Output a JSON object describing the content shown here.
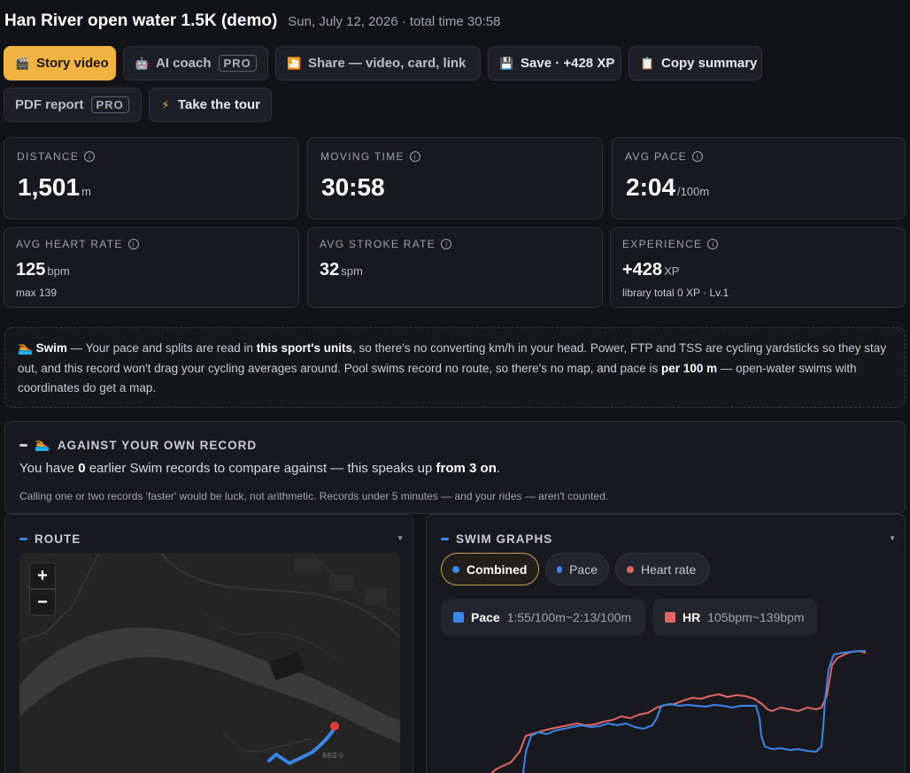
{
  "header": {
    "title": "Han River open water 1.5K (demo)",
    "subtitle": "Sun, July 12, 2026 · total time 30:58"
  },
  "toolbar": {
    "story_video": "Story video",
    "ai_coach": "AI coach",
    "share": "Share — video, card, link",
    "save": "Save · +428 XP",
    "copy_summary": "Copy summary",
    "pdf_report": "PDF report",
    "take_tour": "Take the tour",
    "pro_badge": "PRO"
  },
  "stats": {
    "distance": {
      "label": "DISTANCE",
      "value": "1,501",
      "unit": "m"
    },
    "moving_time": {
      "label": "MOVING TIME",
      "value": "30:58"
    },
    "avg_pace": {
      "label": "AVG PACE",
      "value": "2:04",
      "unit": "/100m"
    },
    "avg_hr": {
      "label": "AVG HEART RATE",
      "value": "125",
      "unit": "bpm",
      "sub": "max 139"
    },
    "avg_stroke": {
      "label": "AVG STROKE RATE",
      "value": "32",
      "unit": "spm"
    },
    "experience": {
      "label": "EXPERIENCE",
      "value": "+428",
      "unit": "XP",
      "sub": "library total 0 XP · Lv.1"
    }
  },
  "note": {
    "sport": "Swim",
    "t1": " — Your pace and splits are read in ",
    "b1": "this sport's units",
    "t2": ", so there's no converting km/h in your head. Power, FTP and TSS are cycling yardsticks so they stay out, and this record won't drag your cycling averages around. Pool swims record no route, so there's no map, and pace is ",
    "b2": "per 100 m",
    "t3": " — open-water swims with coordinates do get a map."
  },
  "record": {
    "title": "AGAINST YOUR OWN RECORD",
    "t1": "You have ",
    "count": "0",
    "t2": " earlier Swim records to compare against — this speaks up ",
    "b": "from 3 on",
    "t3": ".",
    "small": "Calling one or two records 'faster' would be luck, not arithmetic. Records under 5 minutes — and your rides — aren't counted."
  },
  "route": {
    "title": "ROUTE",
    "zoom_in": "+",
    "zoom_out": "−",
    "map_label": "88호수"
  },
  "graphs": {
    "title": "SWIM GRAPHS",
    "tabs": [
      "Combined",
      "Pace",
      "Heart rate"
    ],
    "legend": {
      "pace_name": "Pace",
      "pace_range": "1:55/100m~2:13/100m",
      "hr_name": "HR",
      "hr_range": "105bpm~139bpm"
    }
  },
  "colors": {
    "accent": "#f2b441",
    "pace": "#3a86e8",
    "hr": "#e06666",
    "route": "#3a86e8",
    "marker": "#e03c3c"
  },
  "icons": {
    "story_video": "video-icon",
    "ai_coach": "robot-icon",
    "share": "share-icon",
    "save": "floppy-disk-icon",
    "copy": "clipboard-icon",
    "tour": "lightning-icon",
    "swimmer": "swimmer-icon",
    "info": "info-icon"
  }
}
